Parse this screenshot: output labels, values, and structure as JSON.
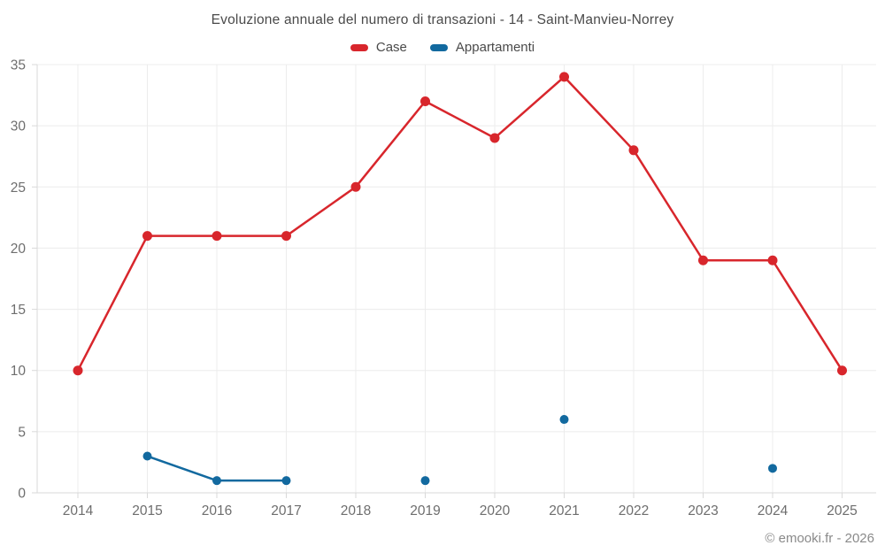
{
  "header": {
    "title": "Evoluzione annuale del numero di transazioni - 14 - Saint-Manvieu-Norrey"
  },
  "footer": {
    "attribution": "© emooki.fr - 2026"
  },
  "colors": {
    "case_red": "#d8262c",
    "appartamenti_blue": "#12699f",
    "grid": "#ececec",
    "axis": "#d9d9d9",
    "tick": "#d9d9d9",
    "tick_label": "#6e6e6e"
  },
  "chart_data": {
    "type": "line",
    "title": "Evoluzione annuale del numero di transazioni - 14 - Saint-Manvieu-Norrey",
    "categories": [
      "2014",
      "2015",
      "2016",
      "2017",
      "2018",
      "2019",
      "2020",
      "2021",
      "2022",
      "2023",
      "2024",
      "2025"
    ],
    "series": [
      {
        "name": "Case",
        "color": "#d8262c",
        "marker_radius": 5.5,
        "values": [
          10,
          21,
          21,
          21,
          25,
          32,
          29,
          34,
          28,
          19,
          19,
          10
        ]
      },
      {
        "name": "Appartamenti",
        "color": "#12699f",
        "marker_radius": 5,
        "values": [
          null,
          3,
          1,
          1,
          null,
          1,
          null,
          6,
          null,
          null,
          2,
          null
        ]
      }
    ],
    "xlabel": "",
    "ylabel": "",
    "ylim": [
      0,
      35
    ],
    "yticks": [
      0,
      5,
      10,
      15,
      20,
      25,
      30,
      35
    ],
    "grid": true,
    "legend_position": "top"
  }
}
